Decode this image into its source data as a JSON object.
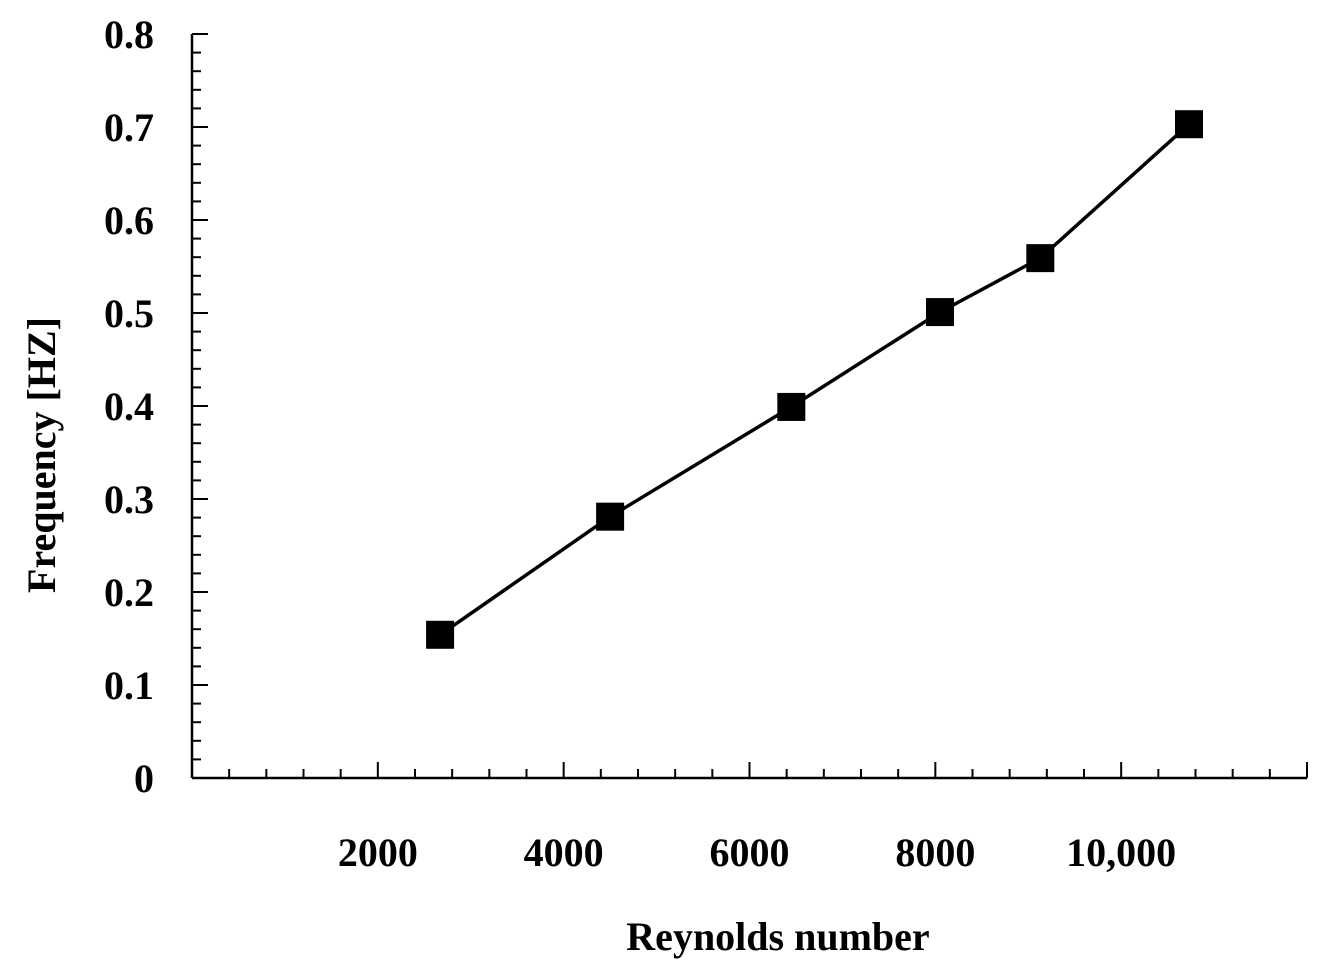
{
  "chart_data": {
    "type": "line",
    "title": "",
    "xlabel": "Reynolds number",
    "ylabel": "Frequency [HZ]",
    "xlim": [
      0,
      12000
    ],
    "ylim": [
      0,
      0.8
    ],
    "grid": false,
    "x_tick_values": [
      2000,
      4000,
      6000,
      8000,
      10000
    ],
    "x_tick_labels": [
      "2000",
      "4000",
      "6000",
      "8000",
      "10,000"
    ],
    "y_tick_values": [
      0,
      0.1,
      0.2,
      0.3,
      0.4,
      0.5,
      0.6,
      0.7,
      0.8
    ],
    "y_tick_labels": [
      "0",
      "0.1",
      "0.2",
      "0.3",
      "0.4",
      "0.5",
      "0.6",
      "0.7",
      "0.8"
    ],
    "series": [
      {
        "marker": "square",
        "color": "#000000",
        "x": [
          2670,
          4500,
          6450,
          8050,
          9130,
          10730
        ],
        "y": [
          0.154,
          0.281,
          0.399,
          0.501,
          0.559,
          0.703
        ]
      }
    ]
  }
}
